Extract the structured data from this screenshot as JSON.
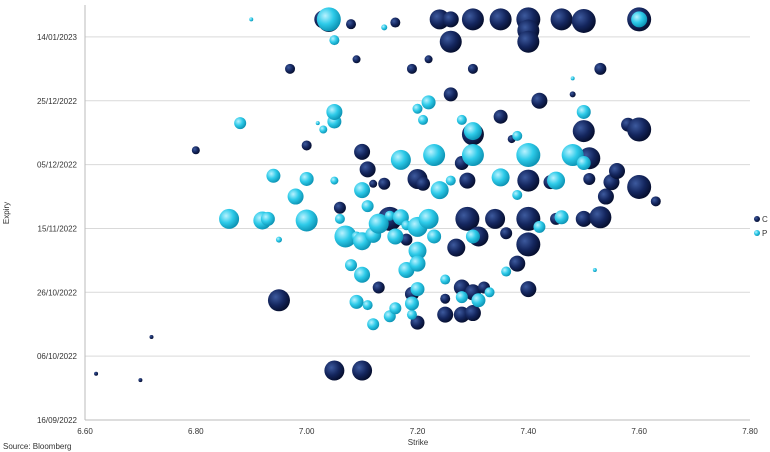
{
  "chart_data": {
    "type": "scatter",
    "subtype": "bubble",
    "xlabel": "Strike",
    "ylabel": "Expiry",
    "xlim": [
      6.6,
      7.8
    ],
    "x_ticks": [
      "6.60",
      "6.80",
      "7.00",
      "7.20",
      "7.40",
      "7.60",
      "7.80"
    ],
    "y_ticks": [
      "16/09/2022",
      "06/10/2022",
      "26/10/2022",
      "15/11/2022",
      "05/12/2022",
      "25/12/2022",
      "14/01/2023"
    ],
    "y_tick_days": [
      0,
      20,
      40,
      60,
      80,
      100,
      120
    ],
    "ylim_days": [
      0,
      130
    ],
    "grid": "horizontal",
    "legend_position": "right",
    "series": [
      {
        "name": "C",
        "color": "#0f1f52",
        "points": [
          [
            6.62,
            14.5,
            2
          ],
          [
            6.7,
            12.5,
            2
          ],
          [
            6.72,
            26,
            2
          ],
          [
            6.8,
            84.5,
            4
          ],
          [
            6.95,
            37.5,
            11
          ],
          [
            6.97,
            110,
            5
          ],
          [
            7.0,
            86,
            5
          ],
          [
            7.03,
            125.5,
            9
          ],
          [
            7.04,
            125,
            11
          ],
          [
            7.05,
            15.5,
            10
          ],
          [
            7.06,
            66.5,
            6
          ],
          [
            7.08,
            124,
            5
          ],
          [
            7.09,
            113,
            4
          ],
          [
            7.1,
            15.5,
            10
          ],
          [
            7.1,
            84,
            8
          ],
          [
            7.11,
            78.5,
            8
          ],
          [
            7.12,
            74,
            4
          ],
          [
            7.13,
            41.5,
            6
          ],
          [
            7.14,
            74,
            6
          ],
          [
            7.15,
            63,
            12
          ],
          [
            7.16,
            124.5,
            5
          ],
          [
            7.18,
            56.5,
            6
          ],
          [
            7.19,
            110,
            5
          ],
          [
            7.19,
            39.5,
            7
          ],
          [
            7.2,
            75.5,
            10
          ],
          [
            7.2,
            30.5,
            7
          ],
          [
            7.21,
            74,
            7
          ],
          [
            7.22,
            113,
            4
          ],
          [
            7.23,
            84,
            6
          ],
          [
            7.24,
            125.5,
            10
          ],
          [
            7.25,
            38,
            5
          ],
          [
            7.25,
            33,
            8
          ],
          [
            7.26,
            118.5,
            11
          ],
          [
            7.26,
            125.5,
            8
          ],
          [
            7.26,
            102,
            7
          ],
          [
            7.27,
            54,
            9
          ],
          [
            7.28,
            80.5,
            7
          ],
          [
            7.28,
            41.5,
            8
          ],
          [
            7.28,
            33,
            8
          ],
          [
            7.3,
            125.5,
            11
          ],
          [
            7.3,
            89.5,
            11
          ],
          [
            7.29,
            75,
            8
          ],
          [
            7.29,
            63,
            12
          ],
          [
            7.3,
            40,
            8
          ],
          [
            7.3,
            33.5,
            8
          ],
          [
            7.3,
            110,
            5
          ],
          [
            7.31,
            57.5,
            10
          ],
          [
            7.32,
            41.5,
            6
          ],
          [
            7.34,
            63,
            10
          ],
          [
            7.35,
            125.5,
            11
          ],
          [
            7.35,
            95,
            7
          ],
          [
            7.36,
            58.5,
            6
          ],
          [
            7.37,
            88,
            4
          ],
          [
            7.38,
            49,
            8
          ],
          [
            7.4,
            125.5,
            12
          ],
          [
            7.4,
            122,
            11
          ],
          [
            7.4,
            118.5,
            11
          ],
          [
            7.4,
            75,
            11
          ],
          [
            7.4,
            63,
            12
          ],
          [
            7.4,
            55,
            12
          ],
          [
            7.4,
            41,
            8
          ],
          [
            7.42,
            100,
            8
          ],
          [
            7.44,
            74.5,
            7
          ],
          [
            7.45,
            63,
            6
          ],
          [
            7.46,
            125.5,
            11
          ],
          [
            7.48,
            102,
            3
          ],
          [
            7.5,
            125,
            12
          ],
          [
            7.5,
            90.5,
            11
          ],
          [
            7.51,
            82,
            11
          ],
          [
            7.51,
            75.5,
            6
          ],
          [
            7.5,
            63,
            8
          ],
          [
            7.53,
            110,
            6
          ],
          [
            7.53,
            63.5,
            11
          ],
          [
            7.54,
            70,
            8
          ],
          [
            7.55,
            74.5,
            8
          ],
          [
            7.56,
            78,
            8
          ],
          [
            7.58,
            92.5,
            7
          ],
          [
            7.6,
            125.5,
            12
          ],
          [
            7.6,
            91,
            12
          ],
          [
            7.6,
            73,
            12
          ],
          [
            7.63,
            68.5,
            5
          ]
        ]
      },
      {
        "name": "P",
        "color": "#27c1e3",
        "points": [
          [
            6.86,
            63,
            10
          ],
          [
            6.88,
            93,
            6
          ],
          [
            6.9,
            125.5,
            2
          ],
          [
            6.92,
            62.5,
            9
          ],
          [
            6.93,
            63,
            7
          ],
          [
            6.94,
            76.5,
            7
          ],
          [
            6.95,
            56.5,
            3
          ],
          [
            6.98,
            70,
            8
          ],
          [
            7.0,
            75.5,
            7
          ],
          [
            7.0,
            62.5,
            11
          ],
          [
            7.02,
            93,
            2
          ],
          [
            7.03,
            91,
            4
          ],
          [
            7.04,
            125.5,
            12
          ],
          [
            7.05,
            93.5,
            7
          ],
          [
            7.05,
            96.5,
            8
          ],
          [
            7.05,
            119,
            5
          ],
          [
            7.05,
            75,
            4
          ],
          [
            7.06,
            63,
            5
          ],
          [
            7.07,
            57.5,
            11
          ],
          [
            7.08,
            48.5,
            6
          ],
          [
            7.09,
            57.5,
            5
          ],
          [
            7.09,
            37,
            7
          ],
          [
            7.1,
            56,
            9
          ],
          [
            7.1,
            45.5,
            8
          ],
          [
            7.1,
            72,
            8
          ],
          [
            7.11,
            67,
            6
          ],
          [
            7.11,
            36,
            5
          ],
          [
            7.12,
            30,
            6
          ],
          [
            7.12,
            58,
            8
          ],
          [
            7.13,
            61.5,
            10
          ],
          [
            7.14,
            123,
            3
          ],
          [
            7.15,
            64,
            5
          ],
          [
            7.15,
            32.5,
            6
          ],
          [
            7.16,
            35,
            6
          ],
          [
            7.16,
            57.5,
            8
          ],
          [
            7.17,
            81.5,
            10
          ],
          [
            7.17,
            63.5,
            8
          ],
          [
            7.18,
            61,
            5
          ],
          [
            7.18,
            47,
            8
          ],
          [
            7.19,
            33,
            5
          ],
          [
            7.19,
            36.5,
            7
          ],
          [
            7.2,
            60.5,
            10
          ],
          [
            7.2,
            53,
            9
          ],
          [
            7.2,
            49,
            8
          ],
          [
            7.2,
            41,
            7
          ],
          [
            7.2,
            97.5,
            5
          ],
          [
            7.21,
            94,
            5
          ],
          [
            7.22,
            99.5,
            7
          ],
          [
            7.22,
            63,
            10
          ],
          [
            7.23,
            83,
            11
          ],
          [
            7.23,
            57.5,
            7
          ],
          [
            7.24,
            72,
            9
          ],
          [
            7.25,
            44,
            5
          ],
          [
            7.26,
            75,
            5
          ],
          [
            7.28,
            94,
            5
          ],
          [
            7.28,
            38.5,
            6
          ],
          [
            7.3,
            90.5,
            9
          ],
          [
            7.3,
            83,
            11
          ],
          [
            7.3,
            57.5,
            7
          ],
          [
            7.31,
            37.5,
            7
          ],
          [
            7.33,
            40,
            5
          ],
          [
            7.35,
            76,
            9
          ],
          [
            7.36,
            46.5,
            5
          ],
          [
            7.38,
            70.5,
            5
          ],
          [
            7.38,
            89,
            5
          ],
          [
            7.4,
            83,
            12
          ],
          [
            7.42,
            60.5,
            6
          ],
          [
            7.45,
            75,
            9
          ],
          [
            7.46,
            63.5,
            7
          ],
          [
            7.48,
            83,
            11
          ],
          [
            7.48,
            107,
            2
          ],
          [
            7.5,
            80.5,
            7
          ],
          [
            7.5,
            96.5,
            7
          ],
          [
            7.52,
            47,
            2
          ],
          [
            7.6,
            125.5,
            8
          ]
        ]
      }
    ]
  },
  "legend": [
    {
      "label": "C",
      "color": "#0f1f52"
    },
    {
      "label": "P",
      "color": "#27c1e3"
    }
  ],
  "source_text": "Source: Bloomberg"
}
